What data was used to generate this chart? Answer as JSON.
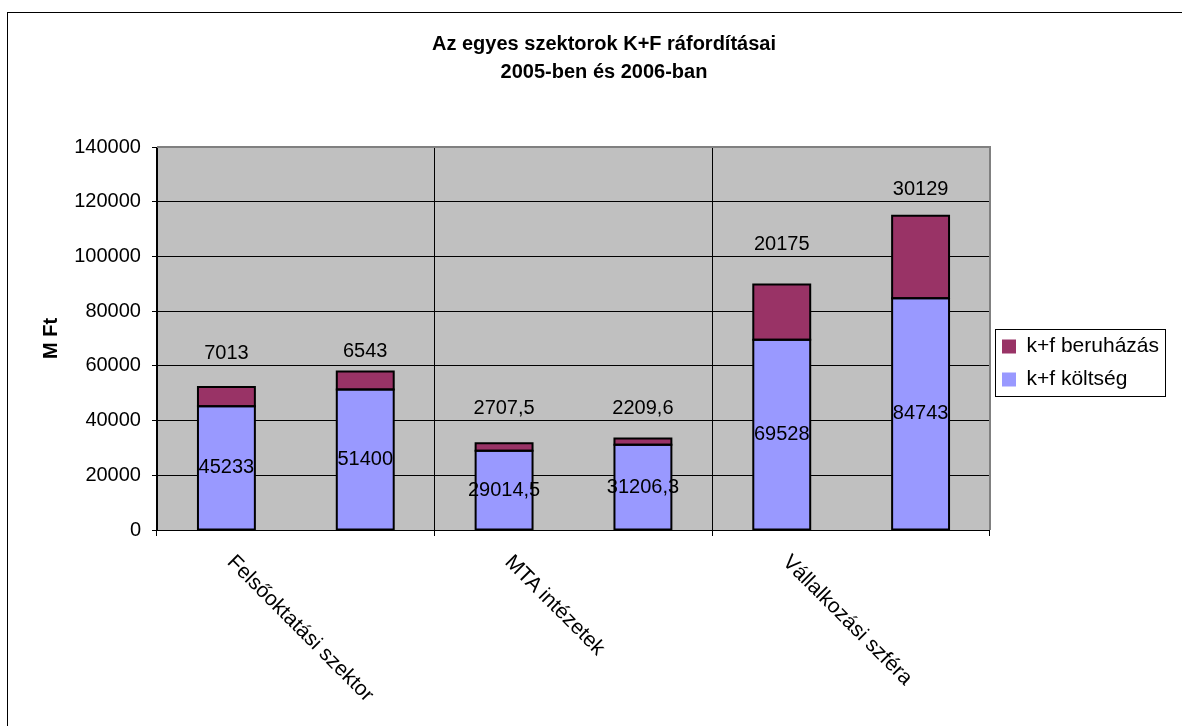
{
  "chart_data": {
    "type": "bar",
    "title": "Az egyes szektorok K+F ráfordításai\n2005-ben és 2006-ban",
    "ylabel": "M Ft",
    "categories": [
      "Felsőoktatási szektor",
      null,
      "MTA intézetek",
      null,
      "Vállalkozási szféra",
      null
    ],
    "stacked": true,
    "series": [
      {
        "name": "k+f költség",
        "color": "#9999ff",
        "values": [
          45233,
          51400,
          29014.5,
          31206.3,
          69528,
          84743
        ],
        "value_labels": [
          "45233",
          "51400",
          "29014,5",
          "31206,3",
          "69528",
          "84743"
        ]
      },
      {
        "name": "k+f beruházás",
        "color": "#993366",
        "values": [
          7013,
          6543,
          2707.5,
          2209.6,
          20175,
          30129
        ],
        "value_labels": [
          "7013",
          "6543",
          "2707,5",
          "2209,6",
          "20175",
          "30129"
        ]
      }
    ],
    "ylim": [
      0,
      140000
    ],
    "yticks": [
      0,
      20000,
      40000,
      60000,
      80000,
      100000,
      120000,
      140000
    ],
    "grid": true,
    "legend": "right"
  }
}
